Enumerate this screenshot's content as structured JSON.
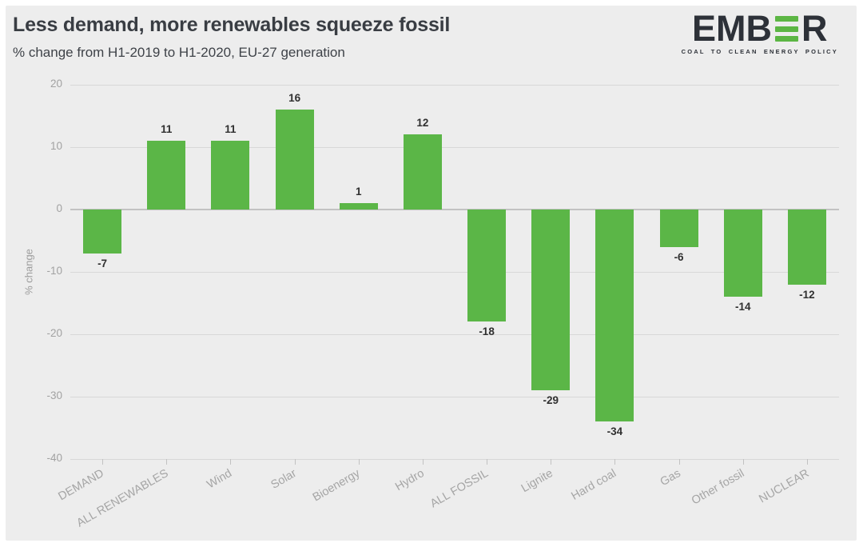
{
  "header": {
    "title": "Less demand, more renewables squeeze fossil",
    "subtitle": "% change from H1-2019 to H1-2020, EU-27 generation"
  },
  "logo": {
    "word_start": "EMB",
    "word_end": "R",
    "tagline": "COAL TO CLEAN ENERGY POLICY",
    "brand_dark": "#2d3138",
    "brand_green": "#5cb644"
  },
  "chart_data": {
    "type": "bar",
    "categories": [
      "DEMAND",
      "ALL RENEWABLES",
      "Wind",
      "Solar",
      "Bioenergy",
      "Hydro",
      "ALL FOSSIL",
      "Lignite",
      "Hard coal",
      "Gas",
      "Other fossil",
      "NUCLEAR"
    ],
    "values": [
      -7,
      11,
      11,
      16,
      1,
      12,
      -18,
      -29,
      -34,
      -6,
      -14,
      -12
    ],
    "title": "Less demand, more renewables squeeze fossil",
    "xlabel": "",
    "ylabel": "% change",
    "ylim": [
      -40,
      20
    ],
    "yticks": [
      20,
      10,
      0,
      -10,
      -20,
      -30,
      -40
    ],
    "grid": true,
    "legend": false,
    "value_labels": true,
    "bar_color": "#5bb647",
    "zero_line_color": "#c2c2c2",
    "gridline_color": "#d8d8d8"
  }
}
